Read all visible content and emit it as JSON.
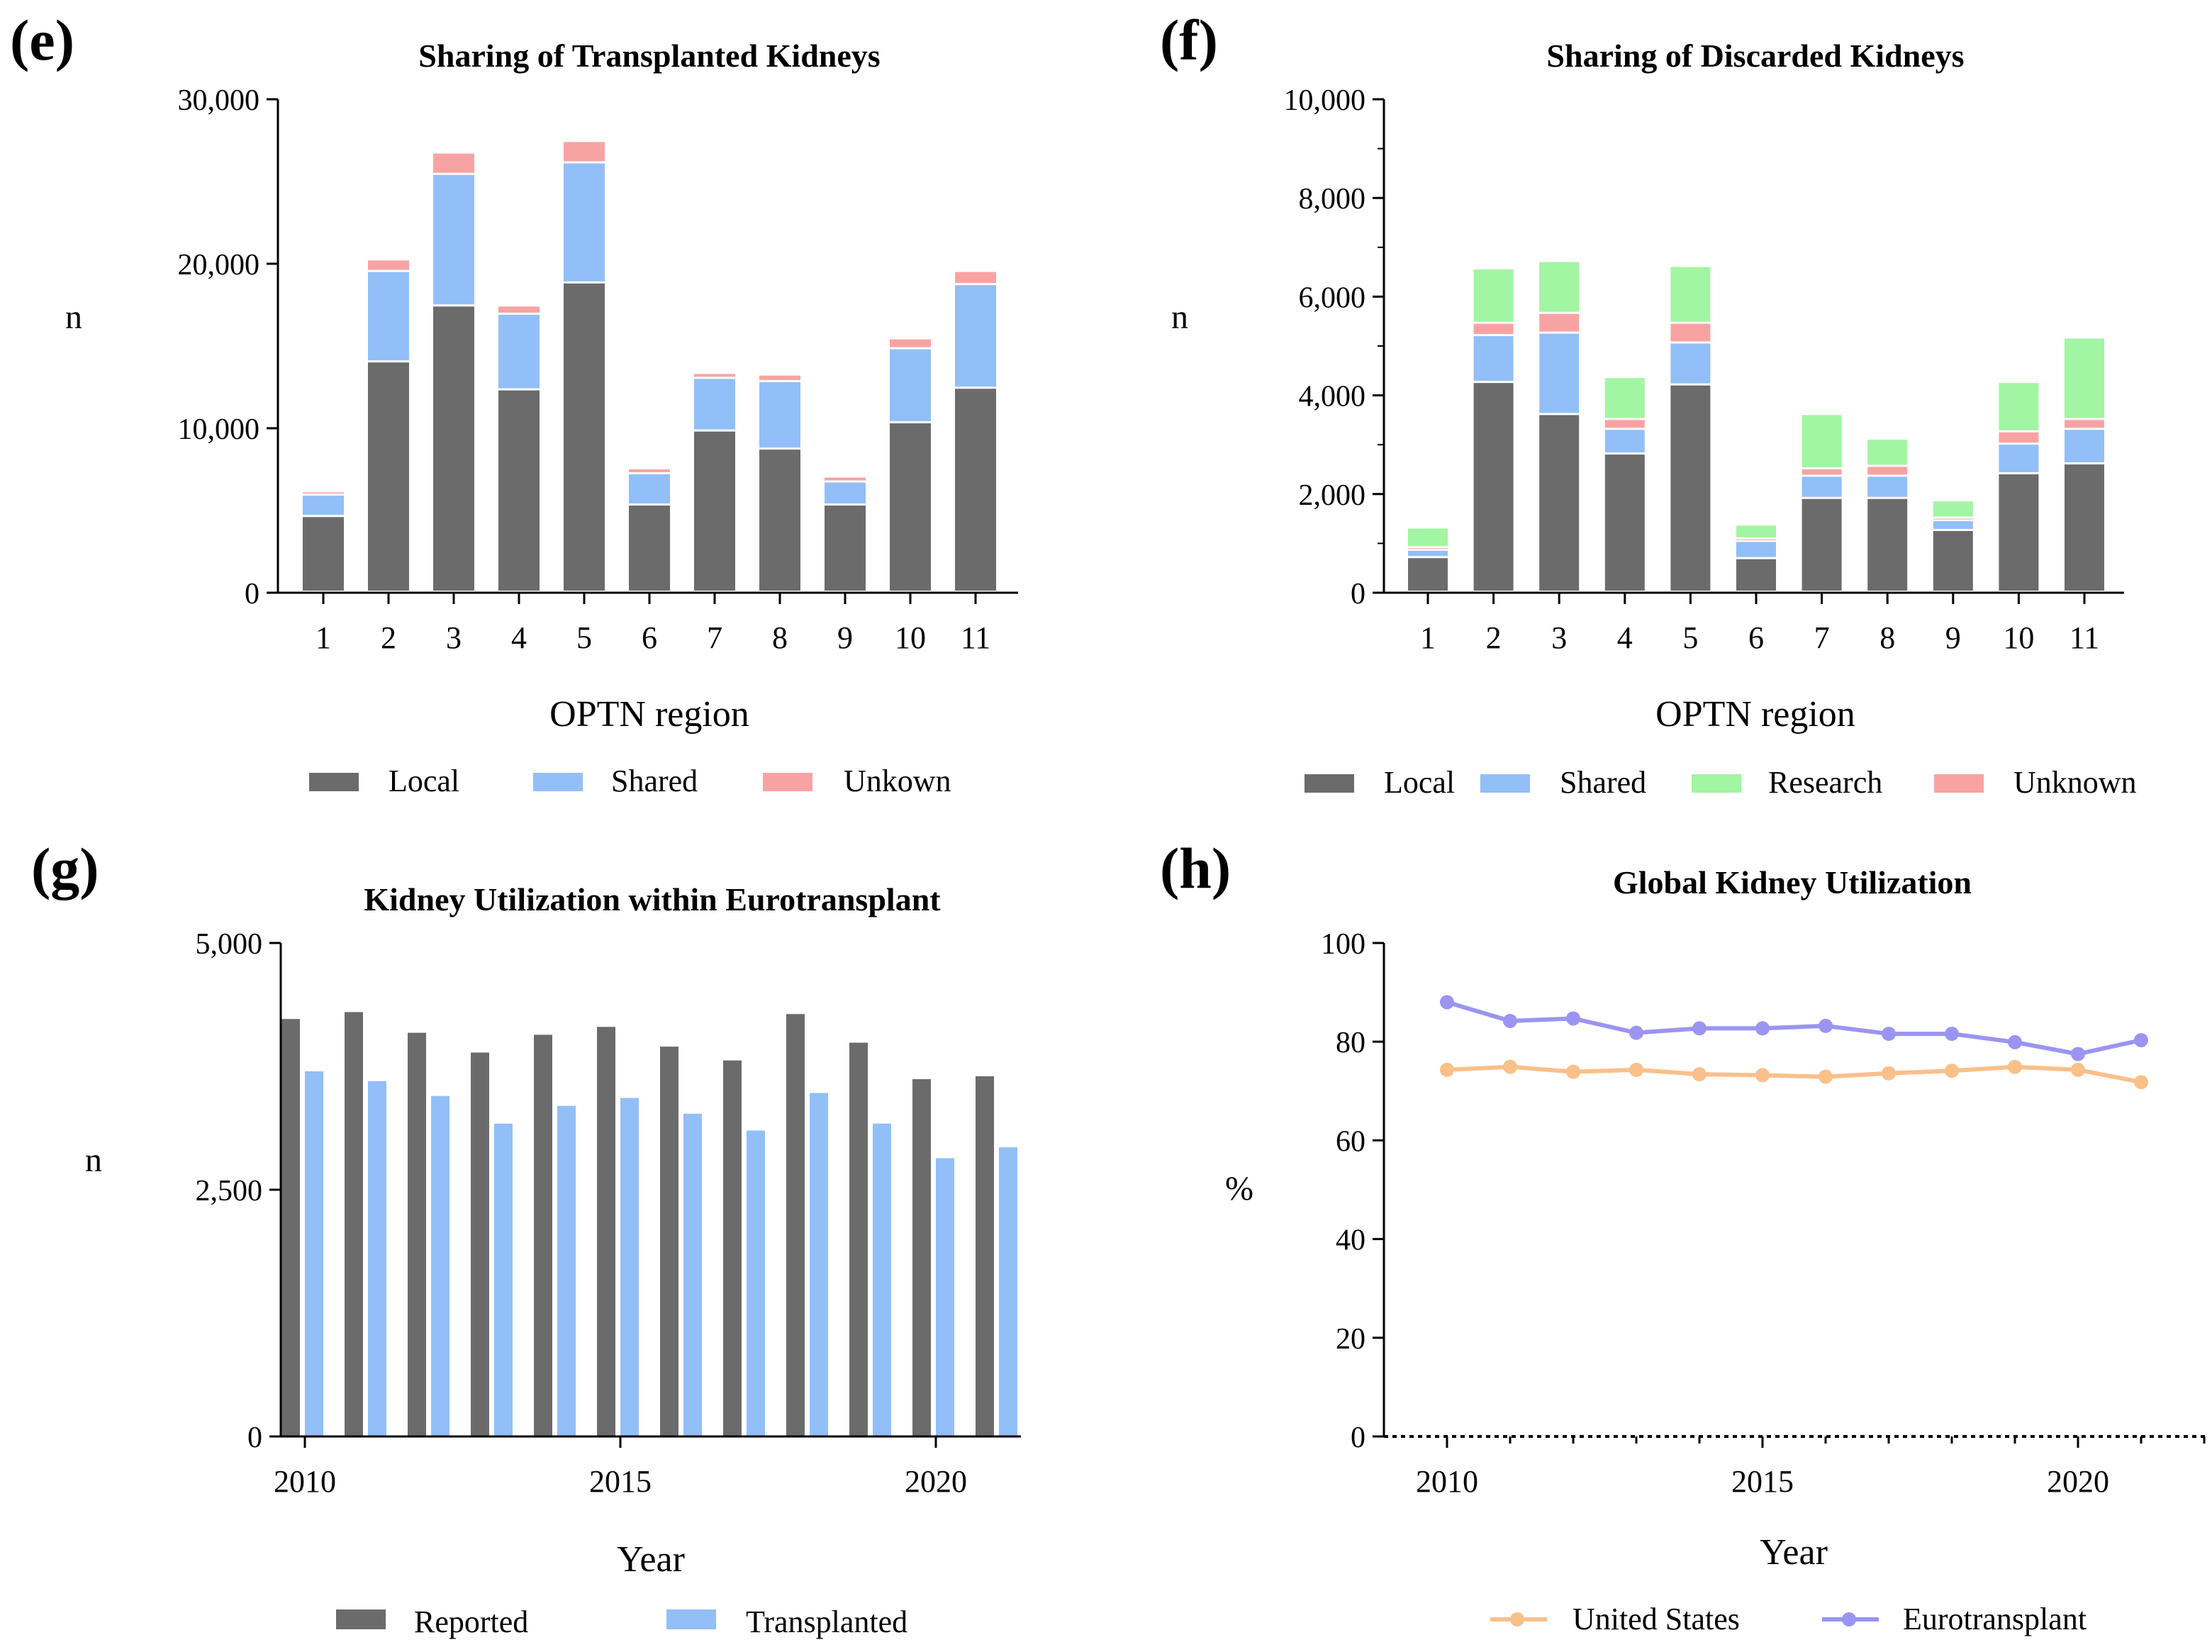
{
  "colors": {
    "local": "#6b6b6b",
    "shared": "#92bff7",
    "unknown": "#f8a3a3",
    "research": "#a2f5a2",
    "reported": "#6b6b6b",
    "transplanted": "#92bff7",
    "us": "#f9c08a",
    "eurotransplant": "#9b94f2",
    "axis": "#000000"
  },
  "chart_data": [
    {
      "panel": "(e)",
      "type": "bar",
      "stacked": true,
      "title": "Sharing of Transplanted Kidneys",
      "xlabel": "OPTN region",
      "ylabel": "n",
      "ylim": [
        0,
        30000
      ],
      "yticks": [
        0,
        10000,
        20000,
        30000
      ],
      "ytick_labels": [
        "0",
        "10,000",
        "20,000",
        "30,000"
      ],
      "categories": [
        "1",
        "2",
        "3",
        "4",
        "5",
        "6",
        "7",
        "8",
        "9",
        "10",
        "11"
      ],
      "series": [
        {
          "name": "Local",
          "color_key": "local",
          "values": [
            4600,
            14000,
            17400,
            12300,
            18800,
            5300,
            9800,
            8700,
            5300,
            10300,
            12400
          ]
        },
        {
          "name": "Shared",
          "color_key": "shared",
          "values": [
            1300,
            5500,
            8000,
            4600,
            7300,
            1900,
            3200,
            4100,
            1400,
            4500,
            6300
          ]
        },
        {
          "name": "Unkown",
          "color_key": "unknown",
          "values": [
            200,
            700,
            1300,
            500,
            1300,
            300,
            300,
            400,
            300,
            600,
            800
          ]
        }
      ],
      "legend": "bottom"
    },
    {
      "panel": "(f)",
      "type": "bar",
      "stacked": true,
      "title": "Sharing of Discarded Kidneys",
      "xlabel": "OPTN region",
      "ylabel": "n",
      "ylim": [
        0,
        10000
      ],
      "yticks": [
        0,
        2000,
        4000,
        6000,
        8000,
        10000
      ],
      "ytick_labels": [
        "0",
        "2,000",
        "4,000",
        "6,000",
        "8,000",
        "10,000"
      ],
      "categories": [
        "1",
        "2",
        "3",
        "4",
        "5",
        "6",
        "7",
        "8",
        "9",
        "10",
        "11"
      ],
      "series": [
        {
          "name": "Local",
          "color_key": "local",
          "values": [
            700,
            4250,
            3600,
            2800,
            4200,
            680,
            1900,
            1900,
            1250,
            2400,
            2600
          ]
        },
        {
          "name": "Shared",
          "color_key": "shared",
          "values": [
            150,
            950,
            1650,
            500,
            850,
            350,
            450,
            450,
            200,
            600,
            700
          ]
        },
        {
          "name": "Unknown",
          "color_key": "unknown",
          "values": [
            50,
            250,
            400,
            200,
            400,
            50,
            150,
            200,
            50,
            250,
            200
          ]
        },
        {
          "name": "Research",
          "color_key": "research",
          "values": [
            400,
            1100,
            1050,
            850,
            1150,
            280,
            1100,
            550,
            350,
            1000,
            1650
          ]
        }
      ],
      "legend_order": [
        "Local",
        "Shared",
        "Research",
        "Unknown"
      ],
      "legend": "bottom"
    },
    {
      "panel": "(g)",
      "type": "bar",
      "stacked": false,
      "title": "Kidney Utilization within Eurotransplant",
      "xlabel": "Year",
      "ylabel": "n",
      "ylim": [
        0,
        5000
      ],
      "yticks": [
        0,
        2500,
        5000
      ],
      "ytick_labels": [
        "0",
        "2,500",
        "5,000"
      ],
      "x": [
        2010,
        2011,
        2012,
        2013,
        2014,
        2015,
        2016,
        2017,
        2018,
        2019,
        2020,
        2021
      ],
      "xticks": [
        2010,
        2015,
        2020
      ],
      "series": [
        {
          "name": "Reported",
          "color_key": "reported",
          "values": [
            4230,
            4300,
            4090,
            3890,
            4070,
            4150,
            3950,
            3810,
            4280,
            3990,
            3620,
            3650
          ]
        },
        {
          "name": "Transplanted",
          "color_key": "transplanted",
          "values": [
            3700,
            3600,
            3450,
            3170,
            3350,
            3430,
            3270,
            3100,
            3480,
            3170,
            2820,
            2930
          ]
        }
      ],
      "legend": "bottom"
    },
    {
      "panel": "(h)",
      "type": "line",
      "title": "Global Kidney Utilization",
      "xlabel": "Year",
      "ylabel": "%",
      "ylim": [
        0,
        100
      ],
      "yticks": [
        0,
        20,
        40,
        60,
        80,
        100
      ],
      "ytick_labels": [
        "0",
        "20",
        "40",
        "60",
        "80",
        "100"
      ],
      "x": [
        2010,
        2011,
        2012,
        2013,
        2014,
        2015,
        2016,
        2017,
        2018,
        2019,
        2020,
        2021
      ],
      "xticks": [
        2010,
        2015,
        2020
      ],
      "xlim": [
        2009,
        2022
      ],
      "series": [
        {
          "name": "United States",
          "color_key": "us",
          "values": [
            74.3,
            74.9,
            73.9,
            74.3,
            73.4,
            73.2,
            72.9,
            73.6,
            74.1,
            74.9,
            74.3,
            71.8
          ]
        },
        {
          "name": "Eurotransplant",
          "color_key": "eurotransplant",
          "values": [
            88.0,
            84.2,
            84.7,
            81.8,
            82.7,
            82.7,
            83.2,
            81.6,
            81.6,
            79.9,
            77.5,
            80.3
          ]
        }
      ],
      "legend": "bottom"
    }
  ]
}
